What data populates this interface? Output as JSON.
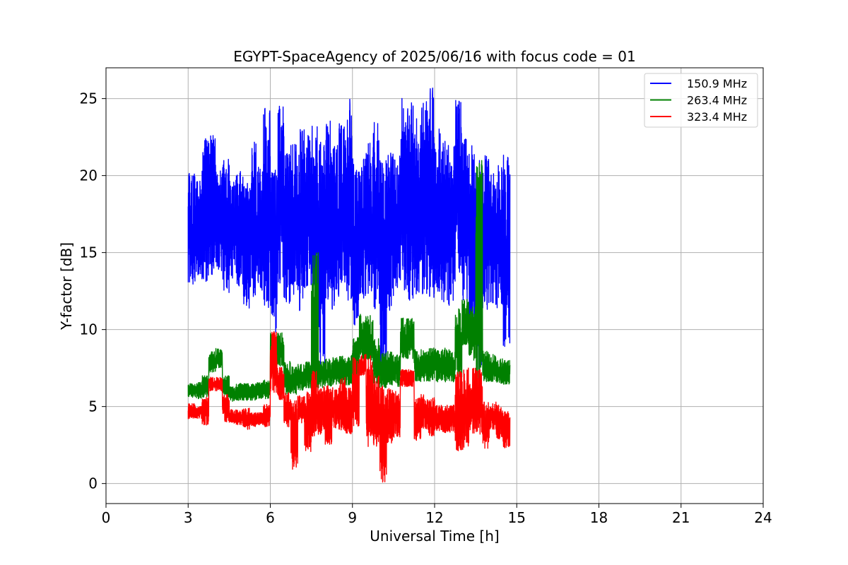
{
  "chart_data": {
    "type": "line",
    "title": "EGYPT-SpaceAgency of 2025/06/16 with focus code = 01",
    "xlabel": "Universal Time [h]",
    "ylabel": "Y-factor [dB]",
    "xlim": [
      0,
      24
    ],
    "ylim": [
      -1.3,
      27
    ],
    "xticks": [
      0,
      3,
      6,
      9,
      12,
      15,
      18,
      21,
      24
    ],
    "yticks": [
      0,
      5,
      10,
      15,
      20,
      25
    ],
    "grid": true,
    "legend_position": "top-right",
    "series": [
      {
        "name": "150.9 MHz",
        "color": "#0000ff",
        "x": [
          3.0,
          3.25,
          3.5,
          3.75,
          4.0,
          4.25,
          4.5,
          4.75,
          5.0,
          5.25,
          5.5,
          5.75,
          6.0,
          6.25,
          6.5,
          6.75,
          7.0,
          7.25,
          7.5,
          7.75,
          8.0,
          8.25,
          8.5,
          8.75,
          9.0,
          9.25,
          9.5,
          9.75,
          10.0,
          10.25,
          10.5,
          10.75,
          11.0,
          11.25,
          11.5,
          11.75,
          12.0,
          12.25,
          12.5,
          12.75,
          13.0,
          13.25,
          13.5,
          13.75,
          14.0,
          14.25,
          14.5,
          14.75
        ],
        "min": [
          12.7,
          13.5,
          13.1,
          13.4,
          13.6,
          12.4,
          13.3,
          12.8,
          11.2,
          11.9,
          12.5,
          11.4,
          9.8,
          12.7,
          11.7,
          12.2,
          10.8,
          12.4,
          11.6,
          7.6,
          11.8,
          11.3,
          13.0,
          11.9,
          10.3,
          12.0,
          12.3,
          11.3,
          7.6,
          11.2,
          12.4,
          11.9,
          11.9,
          12.1,
          12.2,
          12.0,
          12.3,
          11.6,
          11.2,
          13.6,
          11.6,
          8.7,
          7.4,
          11.1,
          11.6,
          11.3,
          8.9,
          11.2
        ],
        "max": [
          20.2,
          19.7,
          22.6,
          22.6,
          20.5,
          21.1,
          19.8,
          20.3,
          19.5,
          22.3,
          20.6,
          24.4,
          20.4,
          24.6,
          21.6,
          22.2,
          23.0,
          22.7,
          23.3,
          22.3,
          23.8,
          22.1,
          23.4,
          25.0,
          21.1,
          21.3,
          22.2,
          23.9,
          21.0,
          21.5,
          21.3,
          25.6,
          24.8,
          23.8,
          24.9,
          25.7,
          23.3,
          22.3,
          22.5,
          25.0,
          22.4,
          22.3,
          21.2,
          21.4,
          20.3,
          20.7,
          21.4,
          20.7
        ]
      },
      {
        "name": "263.4 MHz",
        "color": "#008000",
        "x": [
          3.0,
          3.25,
          3.5,
          3.75,
          4.0,
          4.25,
          4.5,
          4.75,
          5.0,
          5.25,
          5.5,
          5.75,
          6.0,
          6.25,
          6.5,
          6.75,
          7.0,
          7.25,
          7.5,
          7.75,
          8.0,
          8.25,
          8.5,
          8.75,
          9.0,
          9.25,
          9.5,
          9.75,
          10.0,
          10.25,
          10.5,
          10.75,
          11.0,
          11.25,
          11.5,
          11.75,
          12.0,
          12.25,
          12.5,
          12.75,
          13.0,
          13.25,
          13.5,
          13.75,
          14.0,
          14.25,
          14.5,
          14.75
        ],
        "min": [
          5.6,
          5.5,
          5.6,
          7.2,
          7.5,
          5.6,
          5.3,
          5.4,
          5.4,
          5.4,
          5.5,
          5.5,
          7.6,
          7.6,
          5.8,
          5.8,
          6.0,
          6.2,
          4.9,
          6.2,
          6.3,
          6.4,
          6.4,
          6.4,
          6.5,
          8.0,
          8.0,
          6.4,
          6.2,
          6.4,
          6.3,
          8.1,
          8.1,
          6.6,
          6.6,
          6.6,
          6.6,
          6.6,
          6.6,
          6.8,
          9.0,
          8.0,
          6.5,
          6.6,
          6.6,
          6.5,
          6.4,
          6.6
        ],
        "max": [
          6.5,
          6.6,
          7.0,
          8.6,
          8.8,
          7.0,
          6.3,
          6.5,
          6.5,
          6.5,
          6.6,
          6.8,
          9.8,
          9.8,
          8.0,
          7.6,
          7.8,
          7.9,
          15.0,
          8.0,
          8.1,
          8.2,
          8.3,
          8.4,
          9.5,
          11.0,
          11.0,
          9.4,
          8.5,
          8.6,
          8.4,
          10.8,
          10.8,
          8.7,
          8.7,
          8.8,
          8.8,
          8.8,
          8.7,
          11.4,
          12.0,
          11.5,
          21.0,
          8.6,
          8.4,
          8.1,
          8.0,
          8.0
        ]
      },
      {
        "name": "323.4 MHz",
        "color": "#ff0000",
        "x": [
          3.0,
          3.25,
          3.5,
          3.75,
          4.0,
          4.25,
          4.5,
          4.75,
          5.0,
          5.25,
          5.5,
          5.75,
          6.0,
          6.25,
          6.5,
          6.75,
          7.0,
          7.25,
          7.5,
          7.75,
          8.0,
          8.25,
          8.5,
          8.75,
          9.0,
          9.25,
          9.5,
          9.75,
          10.0,
          10.25,
          10.5,
          10.75,
          11.0,
          11.25,
          11.5,
          11.75,
          12.0,
          12.25,
          12.5,
          12.75,
          13.0,
          13.25,
          13.5,
          13.75,
          14.0,
          14.25,
          14.5,
          14.75
        ],
        "min": [
          4.2,
          4.2,
          3.8,
          6.0,
          6.0,
          4.0,
          3.9,
          3.8,
          3.5,
          3.7,
          3.8,
          3.7,
          5.9,
          5.4,
          3.6,
          0.9,
          3.9,
          2.0,
          3.0,
          3.2,
          2.5,
          3.6,
          3.4,
          3.2,
          3.7,
          7.0,
          2.4,
          2.4,
          0.0,
          2.6,
          3.0,
          6.3,
          6.3,
          2.8,
          3.5,
          3.0,
          3.4,
          3.3,
          3.3,
          2.0,
          2.0,
          3.2,
          3.2,
          2.2,
          3.5,
          2.9,
          2.3,
          3.8
        ],
        "max": [
          5.2,
          5.0,
          5.6,
          6.9,
          6.9,
          5.8,
          4.8,
          4.8,
          4.9,
          4.6,
          4.6,
          5.2,
          9.9,
          7.6,
          6.0,
          5.4,
          5.7,
          6.0,
          7.3,
          6.3,
          6.4,
          6.6,
          6.9,
          6.2,
          8.2,
          8.4,
          8.3,
          7.0,
          6.8,
          6.3,
          6.0,
          7.4,
          7.4,
          5.6,
          5.8,
          5.6,
          5.1,
          5.1,
          5.1,
          7.3,
          7.5,
          7.5,
          7.4,
          5.3,
          5.3,
          5.1,
          4.7,
          4.7
        ]
      }
    ]
  }
}
